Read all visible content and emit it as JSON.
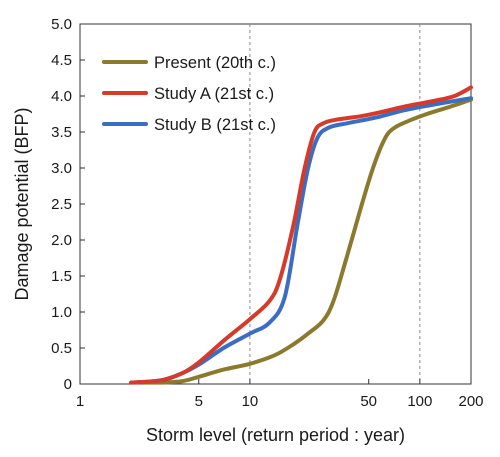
{
  "chart_data": {
    "type": "line",
    "title": "",
    "xlabel": "Storm level (return period : year)",
    "ylabel": "Damage potential (BFP)",
    "x_scale": "log",
    "xlim": [
      1,
      200
    ],
    "ylim": [
      0,
      5.0
    ],
    "x_ticks": [
      1,
      5,
      10,
      50,
      100,
      200
    ],
    "x_tick_labels": [
      "1",
      "5",
      "10",
      "50",
      "100",
      "200"
    ],
    "y_ticks": [
      0,
      0.5,
      1.0,
      1.5,
      2.0,
      2.5,
      3.0,
      3.5,
      4.0,
      4.5,
      5.0
    ],
    "y_tick_labels": [
      "0",
      "0.5",
      "1.0",
      "1.5",
      "2.0",
      "2.5",
      "3.0",
      "3.5",
      "4.0",
      "4.5",
      "5.0"
    ],
    "grid": {
      "x_dashed_at": [
        10,
        100
      ],
      "y": false
    },
    "legend_position": "top-left",
    "series": [
      {
        "name": "Present (20th c.)",
        "color": "#8b7a2e",
        "points": [
          [
            2,
            0.02
          ],
          [
            3,
            0.02
          ],
          [
            4,
            0.04
          ],
          [
            5,
            0.1
          ],
          [
            7,
            0.2
          ],
          [
            10,
            0.28
          ],
          [
            14,
            0.4
          ],
          [
            18,
            0.55
          ],
          [
            22,
            0.7
          ],
          [
            27,
            0.88
          ],
          [
            31,
            1.15
          ],
          [
            37,
            1.75
          ],
          [
            45,
            2.45
          ],
          [
            53,
            3.0
          ],
          [
            62,
            3.4
          ],
          [
            70,
            3.55
          ],
          [
            85,
            3.65
          ],
          [
            110,
            3.75
          ],
          [
            150,
            3.85
          ],
          [
            200,
            3.95
          ]
        ]
      },
      {
        "name": "Study A (21st c.)",
        "color": "#d63a2a",
        "points": [
          [
            2,
            0.02
          ],
          [
            3,
            0.05
          ],
          [
            4,
            0.15
          ],
          [
            5,
            0.3
          ],
          [
            7,
            0.6
          ],
          [
            10,
            0.9
          ],
          [
            13,
            1.15
          ],
          [
            15,
            1.45
          ],
          [
            18,
            2.2
          ],
          [
            21,
            3.0
          ],
          [
            24,
            3.5
          ],
          [
            27,
            3.62
          ],
          [
            32,
            3.67
          ],
          [
            45,
            3.72
          ],
          [
            60,
            3.78
          ],
          [
            80,
            3.85
          ],
          [
            120,
            3.93
          ],
          [
            160,
            4.0
          ],
          [
            200,
            4.12
          ]
        ]
      },
      {
        "name": "Study B (21st c.)",
        "color": "#3b6ec2",
        "points": [
          [
            2,
            0.02
          ],
          [
            3,
            0.05
          ],
          [
            4,
            0.15
          ],
          [
            5,
            0.27
          ],
          [
            7,
            0.5
          ],
          [
            10,
            0.7
          ],
          [
            13,
            0.85
          ],
          [
            16,
            1.2
          ],
          [
            19,
            2.2
          ],
          [
            22,
            3.0
          ],
          [
            25,
            3.42
          ],
          [
            29,
            3.56
          ],
          [
            37,
            3.62
          ],
          [
            55,
            3.7
          ],
          [
            80,
            3.8
          ],
          [
            120,
            3.88
          ],
          [
            200,
            3.97
          ]
        ]
      }
    ]
  }
}
